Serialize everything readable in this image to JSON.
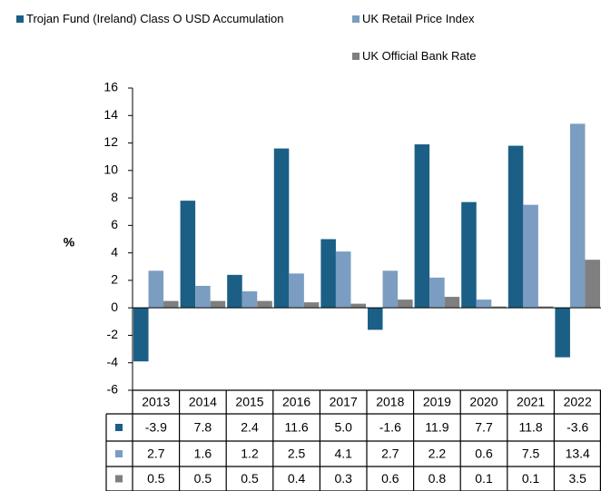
{
  "chart_data": {
    "type": "bar",
    "categories": [
      "2013",
      "2014",
      "2015",
      "2016",
      "2017",
      "2018",
      "2019",
      "2020",
      "2021",
      "2022"
    ],
    "series": [
      {
        "name": "Trojan Fund (Ireland) Class O USD Accumulation",
        "color": "#1b5f86",
        "values": [
          -3.9,
          7.8,
          2.4,
          11.6,
          5.0,
          -1.6,
          11.9,
          7.7,
          11.8,
          -3.6
        ],
        "value_labels": [
          "-3.9",
          "7.8",
          "2.4",
          "11.6",
          "5.0",
          "-1.6",
          "11.9",
          "7.7",
          "11.8",
          "-3.6"
        ]
      },
      {
        "name": "UK Retail Price Index",
        "color": "#7b9dc1",
        "values": [
          2.7,
          1.6,
          1.2,
          2.5,
          4.1,
          2.7,
          2.2,
          0.6,
          7.5,
          13.4
        ]
      },
      {
        "name": "UK Official Bank Rate",
        "color": "#7f7f7f",
        "values": [
          0.5,
          0.5,
          0.5,
          0.4,
          0.3,
          0.6,
          0.8,
          0.1,
          0.1,
          3.5
        ]
      }
    ],
    "ylabel": "%",
    "ylim": [
      -6,
      16
    ],
    "yticks": [
      -6,
      -4,
      -2,
      0,
      2,
      4,
      6,
      8,
      10,
      12,
      14,
      16
    ],
    "grid": false
  }
}
